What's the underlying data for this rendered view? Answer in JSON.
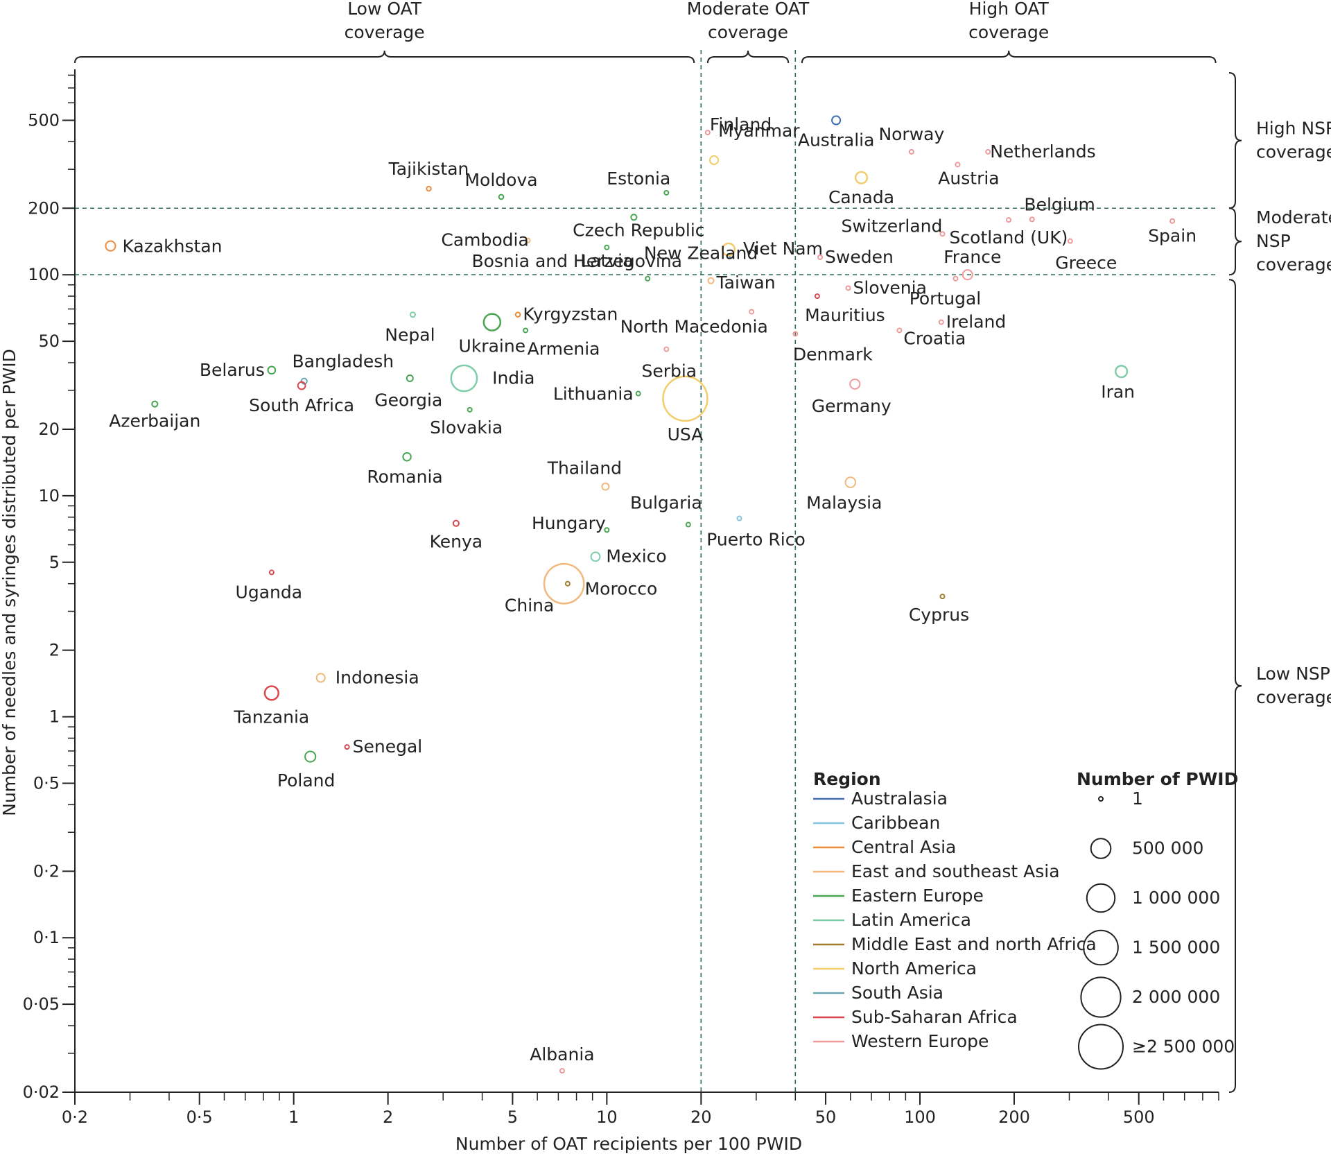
{
  "chart_data": {
    "type": "scatter",
    "xlabel": "Number of OAT recipients per 100 PWID",
    "ylabel": "Number of needles and syringes distributed per PWID",
    "xscale": "log",
    "yscale": "log",
    "xlim": [
      0.2,
      900
    ],
    "ylim": [
      0.02,
      850
    ],
    "x_ticks": [
      {
        "value": 0.2,
        "label": "0·2"
      },
      {
        "value": 0.5,
        "label": "0·5"
      },
      {
        "value": 1,
        "label": "1"
      },
      {
        "value": 2,
        "label": "2"
      },
      {
        "value": 5,
        "label": "5"
      },
      {
        "value": 10,
        "label": "10"
      },
      {
        "value": 20,
        "label": "20"
      },
      {
        "value": 50,
        "label": "50"
      },
      {
        "value": 100,
        "label": "100"
      },
      {
        "value": 200,
        "label": "200"
      },
      {
        "value": 500,
        "label": "500"
      }
    ],
    "y_ticks": [
      {
        "value": 500,
        "label": "500"
      },
      {
        "value": 200,
        "label": "200"
      },
      {
        "value": 100,
        "label": "100"
      },
      {
        "value": 50,
        "label": "50"
      },
      {
        "value": 20,
        "label": "20"
      },
      {
        "value": 10,
        "label": "10"
      },
      {
        "value": 5,
        "label": "5"
      },
      {
        "value": 2,
        "label": "2"
      },
      {
        "value": 1,
        "label": "1"
      },
      {
        "value": 0.5,
        "label": "0·5"
      },
      {
        "value": 0.2,
        "label": "0·2"
      },
      {
        "value": 0.1,
        "label": "0·1"
      },
      {
        "value": 0.05,
        "label": "0·05"
      },
      {
        "value": 0.02,
        "label": "0·02"
      }
    ],
    "reference_lines": {
      "x": [
        20,
        40
      ],
      "y": [
        100,
        200
      ]
    },
    "oat_coverage": [
      {
        "label": "Low OAT coverage",
        "range": [
          0.2,
          19
        ]
      },
      {
        "label": "Moderate OAT coverage",
        "range": [
          21,
          38
        ]
      },
      {
        "label": "High OAT coverage",
        "range": [
          42,
          880
        ]
      }
    ],
    "nsp_coverage": [
      {
        "label": "High NSP coverage",
        "range": [
          200,
          820
        ]
      },
      {
        "label": "Moderate NSP coverage",
        "range": [
          100,
          200
        ]
      },
      {
        "label": "Low NSP coverage",
        "range": [
          0.02,
          95
        ]
      }
    ],
    "regions": [
      {
        "name": "Australasia",
        "color": "#3f6fb0"
      },
      {
        "name": "Caribbean",
        "color": "#86c5e3"
      },
      {
        "name": "Central Asia",
        "color": "#ec8c3a"
      },
      {
        "name": "East and southeast Asia",
        "color": "#f2b87e"
      },
      {
        "name": "Eastern Europe",
        "color": "#48a552"
      },
      {
        "name": "Latin America",
        "color": "#7fcca9"
      },
      {
        "name": "Middle East and north Africa",
        "color": "#a07b2c"
      },
      {
        "name": "North America",
        "color": "#f3cd6a"
      },
      {
        "name": "South Asia",
        "color": "#6aa6b4"
      },
      {
        "name": "Sub-Saharan Africa",
        "color": "#d9474d"
      },
      {
        "name": "Western Europe",
        "color": "#ee9a9a"
      }
    ],
    "size_legend": [
      {
        "value": 1,
        "label": "1"
      },
      {
        "value": 500000,
        "label": "500 000"
      },
      {
        "value": 1000000,
        "label": "1 000 000"
      },
      {
        "value": 1500000,
        "label": "1 500 000"
      },
      {
        "value": 2000000,
        "label": "2 000 000"
      },
      {
        "value": 2500000,
        "label": "≥2 500 000"
      }
    ],
    "points": [
      {
        "country": "Kazakhstan",
        "region": "Central Asia",
        "x": 0.26,
        "y": 135,
        "pwid": 120000
      },
      {
        "country": "Tajikistan",
        "region": "Central Asia",
        "x": 2.7,
        "y": 245,
        "pwid": 25000
      },
      {
        "country": "Moldova",
        "region": "Eastern Europe",
        "x": 4.6,
        "y": 225,
        "pwid": 27000
      },
      {
        "country": "Estonia",
        "region": "Eastern Europe",
        "x": 15.5,
        "y": 235,
        "pwid": 9000
      },
      {
        "country": "Myanmar",
        "region": "North America",
        "x": 22,
        "y": 330,
        "pwid": 90000
      },
      {
        "country": "Finland",
        "region": "Western Europe",
        "x": 21,
        "y": 440,
        "pwid": 15000
      },
      {
        "country": "Australia",
        "region": "Australasia",
        "x": 54,
        "y": 500,
        "pwid": 90000
      },
      {
        "country": "Norway",
        "region": "Western Europe",
        "x": 94,
        "y": 360,
        "pwid": 9000
      },
      {
        "country": "Netherlands",
        "region": "Western Europe",
        "x": 165,
        "y": 360,
        "pwid": 14000
      },
      {
        "country": "Austria",
        "region": "Western Europe",
        "x": 132,
        "y": 315,
        "pwid": 20000
      },
      {
        "country": "Canada",
        "region": "North America",
        "x": 65,
        "y": 275,
        "pwid": 170000
      },
      {
        "country": "Belgium",
        "region": "Western Europe",
        "x": 228,
        "y": 178,
        "pwid": 10000
      },
      {
        "country": "Cambodia",
        "region": "East and southeast Asia",
        "x": 5.6,
        "y": 143,
        "pwid": 8000
      },
      {
        "country": "Czech Republic",
        "region": "Eastern Europe",
        "x": 12.2,
        "y": 182,
        "pwid": 40000
      },
      {
        "country": "Latvia",
        "region": "Eastern Europe",
        "x": 10,
        "y": 133,
        "pwid": 9000
      },
      {
        "country": "New Zealand",
        "region": "Australasia",
        "x": 25,
        "y": 122,
        "pwid": 15000
      },
      {
        "country": "Viet Nam",
        "region": "North America",
        "x": 24.5,
        "y": 130,
        "pwid": 190000
      },
      {
        "country": "Switzerland",
        "region": "Western Europe",
        "x": 118,
        "y": 153,
        "pwid": 8000
      },
      {
        "country": "Scotland (UK)",
        "region": "Western Europe",
        "x": 192,
        "y": 177,
        "pwid": 10000
      },
      {
        "country": "Spain",
        "region": "Western Europe",
        "x": 640,
        "y": 175,
        "pwid": 9000
      },
      {
        "country": "Sweden",
        "region": "Western Europe",
        "x": 48,
        "y": 120,
        "pwid": 12000
      },
      {
        "country": "France",
        "region": "Western Europe",
        "x": 142,
        "y": 100,
        "pwid": 120000
      },
      {
        "country": "Greece",
        "region": "Western Europe",
        "x": 302,
        "y": 142,
        "pwid": 12000
      },
      {
        "country": "Taiwan",
        "region": "East and southeast Asia",
        "x": 21.5,
        "y": 94,
        "pwid": 40000
      },
      {
        "country": "Bosnia and Herzegovina",
        "region": "Eastern Europe",
        "x": 13.5,
        "y": 96,
        "pwid": 7000
      },
      {
        "country": "Slovenia",
        "region": "Western Europe",
        "x": 59,
        "y": 87,
        "pwid": 6000
      },
      {
        "country": "Portugal",
        "region": "Western Europe",
        "x": 130,
        "y": 96,
        "pwid": 12000
      },
      {
        "country": "Mauritius",
        "region": "Sub-Saharan Africa",
        "x": 47,
        "y": 80,
        "pwid": 10000
      },
      {
        "country": "Kyrgyzstan",
        "region": "Central Asia",
        "x": 5.2,
        "y": 66,
        "pwid": 26000
      },
      {
        "country": "Nepal",
        "region": "Latin America",
        "x": 2.4,
        "y": 66,
        "pwid": 30000
      },
      {
        "country": "Ukraine",
        "region": "Eastern Europe",
        "x": 4.3,
        "y": 61,
        "pwid": 350000
      },
      {
        "country": "Armenia",
        "region": "Eastern Europe",
        "x": 5.5,
        "y": 56,
        "pwid": 10000
      },
      {
        "country": "North Macedonia",
        "region": "Western Europe",
        "x": 29,
        "y": 68,
        "pwid": 7000
      },
      {
        "country": "Ireland",
        "region": "Western Europe",
        "x": 117,
        "y": 61,
        "pwid": 8000
      },
      {
        "country": "Croatia",
        "region": "Western Europe",
        "x": 86,
        "y": 56,
        "pwid": 8000
      },
      {
        "country": "Denmark",
        "region": "Western Europe",
        "x": 40,
        "y": 54,
        "pwid": 12000
      },
      {
        "country": "Serbia",
        "region": "Western Europe",
        "x": 15.5,
        "y": 46,
        "pwid": 20000
      },
      {
        "country": "Belarus",
        "region": "Eastern Europe",
        "x": 0.85,
        "y": 37,
        "pwid": 70000
      },
      {
        "country": "Bangladesh",
        "region": "South Asia",
        "x": 1.08,
        "y": 33,
        "pwid": 40000
      },
      {
        "country": "South Africa",
        "region": "Sub-Saharan Africa",
        "x": 1.06,
        "y": 31.5,
        "pwid": 70000
      },
      {
        "country": "Georgia",
        "region": "Eastern Europe",
        "x": 2.35,
        "y": 34,
        "pwid": 50000
      },
      {
        "country": "India",
        "region": "Latin America",
        "x": 3.5,
        "y": 34,
        "pwid": 850000
      },
      {
        "country": "Lithuania",
        "region": "Eastern Europe",
        "x": 12.6,
        "y": 29,
        "pwid": 8000
      },
      {
        "country": "USA",
        "region": "North America",
        "x": 17.8,
        "y": 27.5,
        "pwid": 2500000
      },
      {
        "country": "Germany",
        "region": "Western Europe",
        "x": 62,
        "y": 32,
        "pwid": 120000
      },
      {
        "country": "Iran",
        "region": "Latin America",
        "x": 440,
        "y": 36.5,
        "pwid": 170000
      },
      {
        "country": "Azerbaijan",
        "region": "Eastern Europe",
        "x": 0.36,
        "y": 26,
        "pwid": 40000
      },
      {
        "country": "Slovakia",
        "region": "Eastern Europe",
        "x": 3.65,
        "y": 24.5,
        "pwid": 10000
      },
      {
        "country": "Romania",
        "region": "Eastern Europe",
        "x": 2.3,
        "y": 15,
        "pwid": 80000
      },
      {
        "country": "Thailand",
        "region": "East and southeast Asia",
        "x": 9.9,
        "y": 11,
        "pwid": 60000
      },
      {
        "country": "Malaysia",
        "region": "East and southeast Asia",
        "x": 60,
        "y": 11.5,
        "pwid": 130000
      },
      {
        "country": "Kenya",
        "region": "Sub-Saharan Africa",
        "x": 3.3,
        "y": 7.5,
        "pwid": 40000
      },
      {
        "country": "Hungary",
        "region": "Eastern Europe",
        "x": 10,
        "y": 7,
        "pwid": 6000
      },
      {
        "country": "Bulgaria",
        "region": "Eastern Europe",
        "x": 18.2,
        "y": 7.4,
        "pwid": 18000
      },
      {
        "country": "Puerto Rico",
        "region": "Caribbean",
        "x": 26.5,
        "y": 7.9,
        "pwid": 15000
      },
      {
        "country": "Mexico",
        "region": "Latin America",
        "x": 9.2,
        "y": 5.3,
        "pwid": 100000
      },
      {
        "country": "Uganda",
        "region": "Sub-Saharan Africa",
        "x": 0.85,
        "y": 4.5,
        "pwid": 6000
      },
      {
        "country": "China",
        "region": "East and southeast Asia",
        "x": 7.3,
        "y": 4.0,
        "pwid": 2000000
      },
      {
        "country": "Morocco",
        "region": "Middle East and north Africa",
        "x": 7.5,
        "y": 4.0,
        "pwid": 10000
      },
      {
        "country": "Cyprus",
        "region": "Middle East and north Africa",
        "x": 118,
        "y": 3.5,
        "pwid": 1500
      },
      {
        "country": "Indonesia",
        "region": "East and southeast Asia",
        "x": 1.22,
        "y": 1.5,
        "pwid": 90000
      },
      {
        "country": "Tanzania",
        "region": "Sub-Saharan Africa",
        "x": 0.85,
        "y": 1.28,
        "pwid": 240000
      },
      {
        "country": "Senegal",
        "region": "Sub-Saharan Africa",
        "x": 1.48,
        "y": 0.73,
        "pwid": 8000
      },
      {
        "country": "Poland",
        "region": "Eastern Europe",
        "x": 1.13,
        "y": 0.66,
        "pwid": 140000
      },
      {
        "country": "Albania",
        "region": "Western Europe",
        "x": 7.2,
        "y": 0.025,
        "pwid": 6000
      }
    ]
  }
}
